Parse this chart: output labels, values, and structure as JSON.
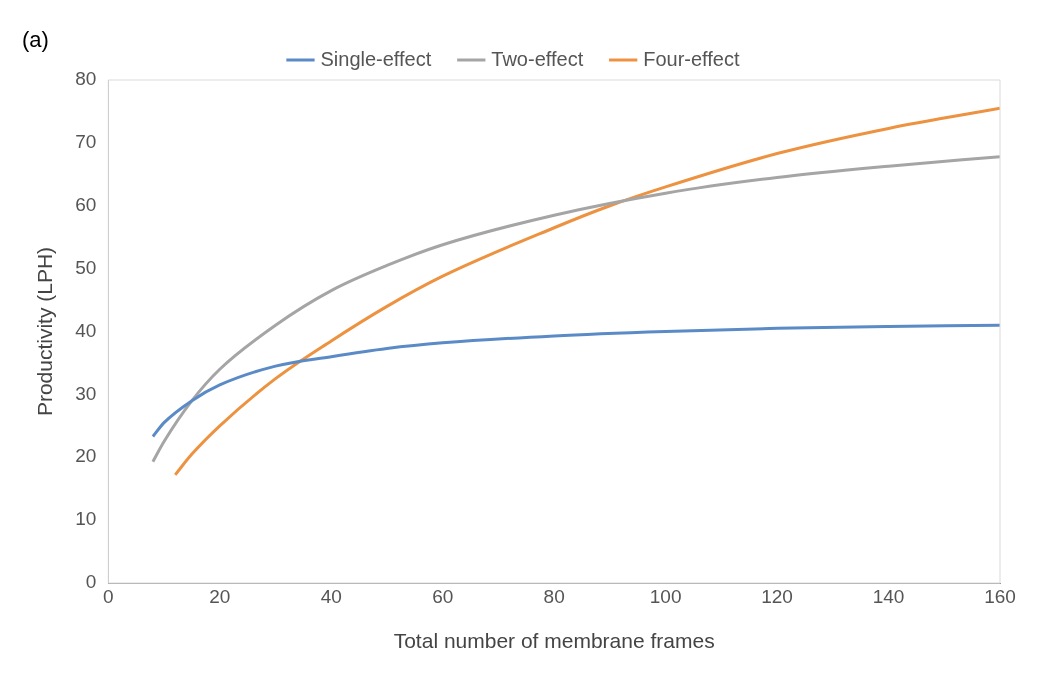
{
  "chart_data": {
    "type": "line",
    "xlabel": "Total number of membrane frames",
    "ylabel": "Productivity (LPH)",
    "annotations": [
      "(a)"
    ],
    "xlim": [
      0,
      160
    ],
    "xticks": [
      0,
      20,
      40,
      60,
      80,
      100,
      120,
      140,
      160
    ],
    "ylim": [
      0,
      80
    ],
    "yticks": [
      0,
      10,
      20,
      30,
      40,
      50,
      60,
      70,
      80
    ],
    "grid": false,
    "legend": "top",
    "marker": "none",
    "line_style": "solid",
    "series": [
      {
        "name": "Single-effect",
        "color": "#5b8bc6",
        "x": [
          8,
          10,
          15,
          20,
          30,
          40,
          50,
          60,
          80,
          100,
          120,
          140,
          160
        ],
        "values": [
          23.3,
          25.5,
          29,
          31.5,
          34.5,
          36,
          37.3,
          38.2,
          39.3,
          40,
          40.5,
          40.8,
          41
        ]
      },
      {
        "name": "Two-effect",
        "color": "#a5a5a5",
        "x": [
          8,
          10,
          15,
          20,
          30,
          40,
          50,
          60,
          80,
          100,
          120,
          140,
          160
        ],
        "values": [
          19.3,
          22.5,
          29,
          34,
          41,
          46.5,
          50.5,
          53.8,
          58.5,
          62,
          64.5,
          66.3,
          67.8
        ]
      },
      {
        "name": "Four-effect",
        "color": "#ed9240",
        "x": [
          12,
          15,
          20,
          30,
          40,
          50,
          60,
          80,
          90,
          100,
          120,
          140,
          160
        ],
        "values": [
          17.2,
          20.5,
          25,
          32.5,
          38.5,
          44,
          48.8,
          56.5,
          60,
          63,
          68.3,
          72.3,
          75.5
        ]
      }
    ]
  }
}
